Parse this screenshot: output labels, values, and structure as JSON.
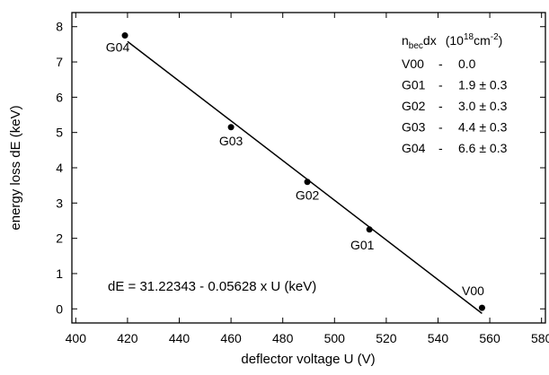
{
  "chart_data": {
    "type": "scatter",
    "xlabel": "deflector  voltage  U  (V)",
    "ylabel": "energy loss dE (keV)",
    "xlim": [
      398.5,
      581.5
    ],
    "xticks": [
      400,
      420,
      440,
      460,
      480,
      500,
      520,
      540,
      560,
      580
    ],
    "ylim": [
      -0.4,
      8.4
    ],
    "yticks": [
      0,
      1,
      2,
      3,
      4,
      5,
      6,
      7,
      8
    ],
    "series": [
      {
        "style": "points",
        "color": "#000000",
        "x": [
          419,
          460,
          489.5,
          513.5,
          557
        ],
        "values": [
          7.75,
          5.15,
          3.6,
          2.25,
          0.03
        ],
        "point_labels": [
          "G04",
          "G03",
          "G02",
          "G01",
          "V00"
        ]
      },
      {
        "style": "line",
        "color": "#000000",
        "x": [
          420,
          557
        ],
        "values": [
          7.58,
          -0.13
        ]
      }
    ],
    "fit_label": "dE = 31.22343 - 0.05628 x U   (keV)",
    "table": {
      "header": {
        "symbol": "n",
        "symbol_sub": "bec",
        "symbol_suffix": "dx",
        "unit_open": "(10",
        "unit_exp": "18",
        "unit_mid": "cm",
        "unit_exp2": "-2",
        "unit_close": ")"
      },
      "rows": [
        [
          "V00",
          "-",
          "0.0"
        ],
        [
          "G01",
          "-",
          "1.9 ± 0.3"
        ],
        [
          "G02",
          "-",
          "3.0 ± 0.3"
        ],
        [
          "G03",
          "-",
          "4.4 ± 0.3"
        ],
        [
          "G04",
          "-",
          "6.6 ± 0.3"
        ]
      ]
    }
  }
}
